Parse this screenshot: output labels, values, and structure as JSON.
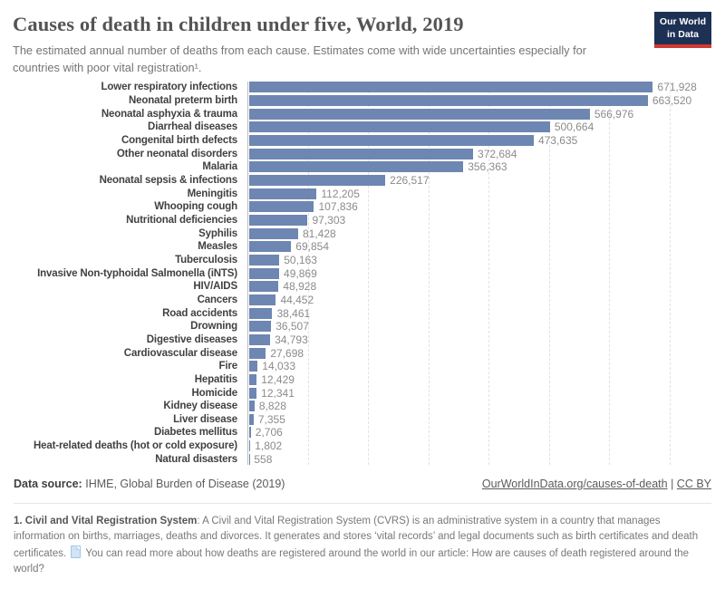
{
  "header": {
    "title": "Causes of death in children under five, World, 2019",
    "subtitle": "The estimated annual number of deaths from each cause. Estimates come with wide uncertainties especially for countries with poor vital registration¹.",
    "logo_line1": "Our World",
    "logo_line2": "in Data",
    "logo_bg_color": "#1d3155",
    "logo_accent_color": "#cf3a33"
  },
  "chart_data": {
    "type": "bar",
    "orientation": "horizontal",
    "title": "Causes of death in children under five, World, 2019",
    "xlabel": "",
    "ylabel": "",
    "xlim": [
      0,
      700000
    ],
    "gridline_interval": 100000,
    "grid": true,
    "bar_color": "#6e86b2",
    "categories": [
      "Lower respiratory infections",
      "Neonatal preterm birth",
      "Neonatal asphyxia & trauma",
      "Diarrheal diseases",
      "Congenital birth defects",
      "Other neonatal disorders",
      "Malaria",
      "Neonatal sepsis & infections",
      "Meningitis",
      "Whooping cough",
      "Nutritional deficiencies",
      "Syphilis",
      "Measles",
      "Tuberculosis",
      "Invasive Non-typhoidal Salmonella (iNTS)",
      "HIV/AIDS",
      "Cancers",
      "Road accidents",
      "Drowning",
      "Digestive diseases",
      "Cardiovascular disease",
      "Fire",
      "Hepatitis",
      "Homicide",
      "Kidney disease",
      "Liver disease",
      "Diabetes mellitus",
      "Heat-related deaths (hot or cold exposure)",
      "Natural disasters"
    ],
    "values": [
      671928,
      663520,
      566976,
      500664,
      473635,
      372684,
      356363,
      226517,
      112205,
      107836,
      97303,
      81428,
      69854,
      50163,
      49869,
      48928,
      44452,
      38461,
      36507,
      34793,
      27698,
      14033,
      12429,
      12341,
      8828,
      7355,
      2706,
      1802,
      558
    ],
    "value_labels": [
      "671,928",
      "663,520",
      "566,976",
      "500,664",
      "473,635",
      "372,684",
      "356,363",
      "226,517",
      "112,205",
      "107,836",
      "97,303",
      "81,428",
      "69,854",
      "50,163",
      "49,869",
      "48,928",
      "44,452",
      "38,461",
      "36,507",
      "34,793",
      "27,698",
      "14,033",
      "12,429",
      "12,341",
      "8,828",
      "7,355",
      "2,706",
      "1,802",
      "558"
    ]
  },
  "footer": {
    "data_source_label": "Data source:",
    "data_source_value": "IHME, Global Burden of Disease (2019)",
    "link": "OurWorldInData.org/causes-of-death",
    "separator": " | ",
    "license": "CC BY"
  },
  "footnote": {
    "term": "1. Civil and Vital Registration System",
    "text_before_icon": ": A Civil and Vital Registration System (CVRS) is an administrative system in a country that manages information on births, marriages, deaths and divorces. It generates and stores ‘vital records’ and legal documents such as birth certificates and death certificates.",
    "icon": "document-page-icon",
    "text_after_icon": "You can read more about how deaths are registered around the world in our article: How are causes of death registered around the world?"
  }
}
